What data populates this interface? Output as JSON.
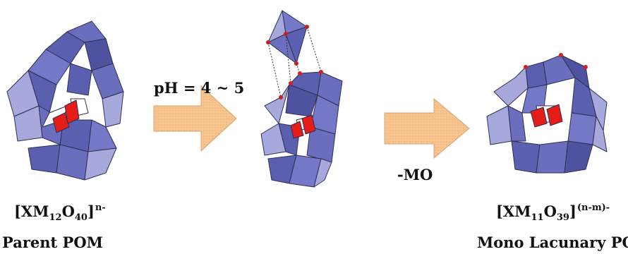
{
  "step1": {
    "label": "pH = 4 ~ 5"
  },
  "step2": {
    "label": "-MO"
  },
  "parent": {
    "formula": {
      "base": "[XM",
      "sub1": "12",
      "mid": "O",
      "sub2": "40",
      "close": "]",
      "charge": "n-"
    },
    "name": "Parent POM"
  },
  "product": {
    "formula": {
      "base": "[XM",
      "sub1": "11",
      "mid": "O",
      "sub2": "39",
      "close": "]",
      "charge": "(n-m)-"
    },
    "name": "Mono Lacunary POM"
  },
  "colors": {
    "octahedron_dark": "#5b5fb0",
    "octahedron_light": "#a7a9dc",
    "edge": "#2f2f55",
    "core": "#e51c17",
    "oxygen": "#d42020",
    "arrow_fill": "#f7c490",
    "arrow_stroke": "#d9a46e"
  }
}
